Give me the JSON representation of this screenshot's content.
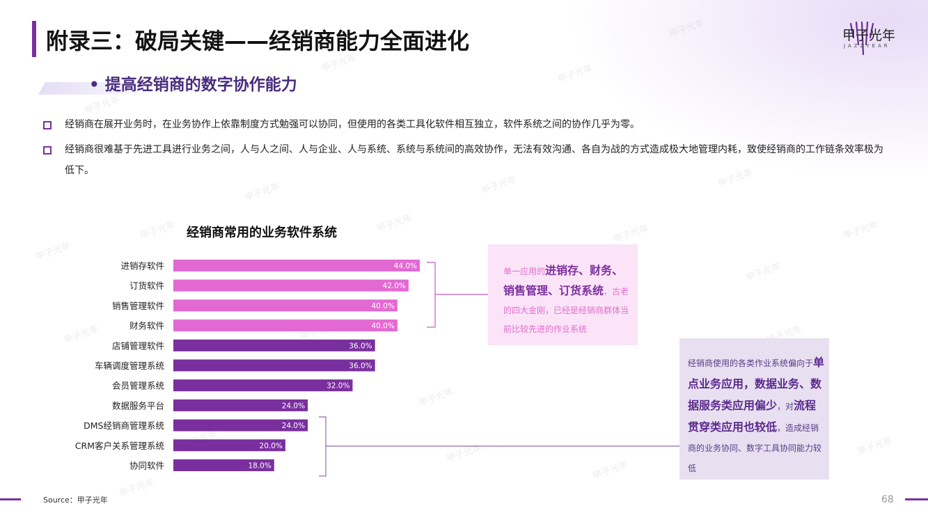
{
  "header": {
    "title": "附录三：破局关键——经销商能力全面进化",
    "brand_name": "甲子光年",
    "brand_sub": "JAZZYEAR"
  },
  "section": {
    "subtitle": "提高经销商的数字协作能力"
  },
  "bullets": [
    "经销商在展开业务时，在业务协作上依靠制度方式勉强可以协同，但使用的各类工具化软件相互独立，软件系统之间的协作几乎为零。",
    "经销商很难基于先进工具进行业务之间，人与人之间、人与企业、人与系统、系统与系统间的高效协作，无法有效沟通、各自为战的方式造成极大地管理内耗，致使经销商的工作链条效率极为低下。"
  ],
  "chart_data": {
    "type": "bar",
    "orientation": "horizontal",
    "title": "经销商常用的业务软件系统",
    "categories": [
      "进销存软件",
      "订货软件",
      "销售管理软件",
      "财务软件",
      "店铺管理软件",
      "车辆调度管理系统",
      "会员管理系统",
      "数据服务平台",
      "DMS经销商管理系统",
      "CRM客户关系管理系统",
      "协同软件"
    ],
    "values": [
      44.0,
      42.0,
      40.0,
      40.0,
      36.0,
      36.0,
      32.0,
      24.0,
      24.0,
      20.0,
      18.0
    ],
    "value_labels": [
      "44.0%",
      "42.0%",
      "40.0%",
      "40.0%",
      "36.0%",
      "36.0%",
      "32.0%",
      "24.0%",
      "24.0%",
      "20.0%",
      "18.0%"
    ],
    "bar_colors": [
      "#e369d2",
      "#e369d2",
      "#e369d2",
      "#e369d2",
      "#7a2f9e",
      "#7a2f9e",
      "#7a2f9e",
      "#7a2f9e",
      "#7a2f9e",
      "#7a2f9e",
      "#7a2f9e"
    ],
    "xlim": [
      0,
      44
    ],
    "grid": false,
    "legend": "none"
  },
  "callouts": {
    "first": {
      "pre": "单一应用的",
      "bold": "进销存、财务、销售管理、订货系统",
      "post": "，古老的四大金刚，已经是经销商群体当前比较先进的作业系统"
    },
    "second": {
      "pre": "经销商使用的各类作业系统偏向于",
      "bold1": "单点业务应用，数据业务、数据服务类应用偏少",
      "mid": "，对",
      "bold2": "流程贯穿类应用也较低",
      "post": "，造成经销商的业务协同、数字工具协同能力较低"
    }
  },
  "footer": {
    "source": "Source：甲子光年",
    "page": "68"
  },
  "colors": {
    "accent_purple": "#7a2f9e",
    "accent_pink": "#e369d2",
    "subtitle_color": "#4a2d7e"
  }
}
